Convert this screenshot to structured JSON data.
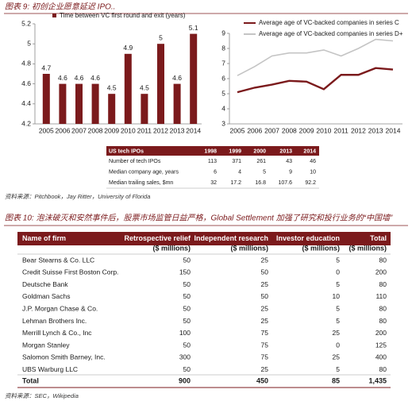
{
  "figure9": {
    "title": "图表 9: 初创企业愿意延迟 IPO..",
    "source": "资料来源：Pitchbook，Jay Ritter，University of Florida"
  },
  "chart_data": [
    {
      "type": "bar",
      "categories": [
        "2005",
        "2006",
        "2007",
        "2008",
        "2009",
        "2010",
        "2011",
        "2012",
        "2013",
        "2014"
      ],
      "series": [
        {
          "name": "Time between VC first round and exit (years)",
          "color": "#7b1a1c",
          "values": [
            4.7,
            4.6,
            4.6,
            4.6,
            4.5,
            4.9,
            4.5,
            5,
            4.6,
            5.1
          ]
        }
      ],
      "ylim": [
        4.2,
        5.2
      ],
      "yticks": [
        4.2,
        4.4,
        4.6,
        4.8,
        5,
        5.2
      ],
      "data_labels": true,
      "grid": false
    },
    {
      "type": "line",
      "categories": [
        "2005",
        "2006",
        "2007",
        "2008",
        "2009",
        "2010",
        "2011",
        "2012",
        "2013",
        "2014"
      ],
      "series": [
        {
          "name": "Average age of VC-backed companies in series C",
          "color": "#7b1a1c",
          "values": [
            5.1,
            5.4,
            5.6,
            5.85,
            5.8,
            5.3,
            6.25,
            6.25,
            6.7,
            6.6
          ]
        },
        {
          "name": "Average age of VC-backed companies in series D+",
          "color": "#c4c4c4",
          "values": [
            6.2,
            6.8,
            7.5,
            7.7,
            7.7,
            7.9,
            7.5,
            8.0,
            8.6,
            8.5
          ]
        }
      ],
      "ylim": [
        3,
        9
      ],
      "yticks": [
        3,
        4,
        5,
        6,
        7,
        8,
        9
      ],
      "grid": false
    }
  ],
  "ipo_table": {
    "columns": [
      "US tech IPOs",
      "1998",
      "1999",
      "2000",
      "2013",
      "2014"
    ],
    "rows": [
      [
        "Number of tech IPOs",
        "113",
        "371",
        "261",
        "43",
        "46"
      ],
      [
        "Median company age, years",
        "6",
        "4",
        "5",
        "9",
        "10"
      ],
      [
        "Median trailing sales, $mn",
        "32",
        "17.2",
        "16.8",
        "107.6",
        "92.2"
      ]
    ]
  },
  "figure10": {
    "title": "图表 10: 泡沫破灭和安然事件后，股票市场监管日益严格，Global Settlement 加强了研究和投行业务的“中国墙”",
    "source": "资料来源：SEC，Wikipedia"
  },
  "settlement_table": {
    "columns": [
      "Name of firm",
      "Retrospective relief",
      "Independent research",
      "Investor education",
      "Total"
    ],
    "units": [
      "($ millions)",
      "($ millions)",
      "($ millions)",
      "($ millions)"
    ],
    "rows": [
      [
        "Bear Stearns & Co. LLC",
        "50",
        "25",
        "5",
        "80"
      ],
      [
        "Credit Suisse First Boston Corp.",
        "150",
        "50",
        "0",
        "200"
      ],
      [
        "Deutsche Bank",
        "50",
        "25",
        "5",
        "80"
      ],
      [
        "Goldman Sachs",
        "50",
        "50",
        "10",
        "110"
      ],
      [
        "J.P. Morgan Chase & Co.",
        "50",
        "25",
        "5",
        "80"
      ],
      [
        "Lehman Brothers Inc.",
        "50",
        "25",
        "5",
        "80"
      ],
      [
        "Merrill Lynch & Co., Inc",
        "100",
        "75",
        "25",
        "200"
      ],
      [
        "Morgan Stanley",
        "50",
        "75",
        "0",
        "125"
      ],
      [
        "Salomon Smith Barney, Inc.",
        "300",
        "75",
        "25",
        "400"
      ],
      [
        "UBS Warburg LLC",
        "50",
        "25",
        "5",
        "80"
      ]
    ],
    "total": [
      "Total",
      "900",
      "450",
      "85",
      "1,435"
    ]
  }
}
